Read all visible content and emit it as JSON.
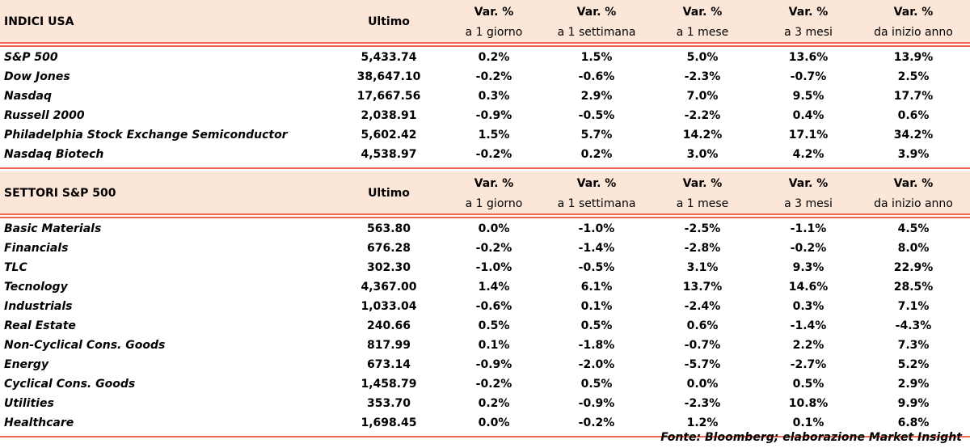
{
  "columns": {
    "ultimo": "Ultimo",
    "var_top": "Var. %",
    "sub": [
      "a 1 giorno",
      "a 1 settimana",
      "a 1 mese",
      "a 3 mesi",
      "da inizio anno"
    ]
  },
  "sections": [
    {
      "title": "INDICI USA",
      "rows": [
        {
          "name": "S&P 500",
          "last": "5,433.74",
          "vals": [
            "0.2%",
            "1.5%",
            "5.0%",
            "13.6%",
            "13.9%"
          ]
        },
        {
          "name": "Dow Jones",
          "last": "38,647.10",
          "vals": [
            "-0.2%",
            "-0.6%",
            "-2.3%",
            "-0.7%",
            "2.5%"
          ]
        },
        {
          "name": "Nasdaq",
          "last": "17,667.56",
          "vals": [
            "0.3%",
            "2.9%",
            "7.0%",
            "9.5%",
            "17.7%"
          ]
        },
        {
          "name": "Russell 2000",
          "last": "2,038.91",
          "vals": [
            "-0.9%",
            "-0.5%",
            "-2.2%",
            "0.4%",
            "0.6%"
          ]
        },
        {
          "name": "Philadelphia Stock Exchange Semiconductor",
          "last": "5,602.42",
          "vals": [
            "1.5%",
            "5.7%",
            "14.2%",
            "17.1%",
            "34.2%"
          ]
        },
        {
          "name": "Nasdaq Biotech",
          "last": "4,538.97",
          "vals": [
            "-0.2%",
            "0.2%",
            "3.0%",
            "4.2%",
            "3.9%"
          ]
        }
      ]
    },
    {
      "title": "SETTORI S&P 500",
      "rows": [
        {
          "name": "Basic Materials",
          "last": "563.80",
          "vals": [
            "0.0%",
            "-1.0%",
            "-2.5%",
            "-1.1%",
            "4.5%"
          ]
        },
        {
          "name": "Financials",
          "last": "676.28",
          "vals": [
            "-0.2%",
            "-1.4%",
            "-2.8%",
            "-0.2%",
            "8.0%"
          ]
        },
        {
          "name": "TLC",
          "last": "302.30",
          "vals": [
            "-1.0%",
            "-0.5%",
            "3.1%",
            "9.3%",
            "22.9%"
          ]
        },
        {
          "name": "Tecnology",
          "last": "4,367.00",
          "vals": [
            "1.4%",
            "6.1%",
            "13.7%",
            "14.6%",
            "28.5%"
          ]
        },
        {
          "name": "Industrials",
          "last": "1,033.04",
          "vals": [
            "-0.6%",
            "0.1%",
            "-2.4%",
            "0.3%",
            "7.1%"
          ]
        },
        {
          "name": "Real Estate",
          "last": "240.66",
          "vals": [
            "0.5%",
            "0.5%",
            "0.6%",
            "-1.4%",
            "-4.3%"
          ]
        },
        {
          "name": "Non-Cyclical Cons. Goods",
          "last": "817.99",
          "vals": [
            "0.1%",
            "-1.8%",
            "-0.7%",
            "2.2%",
            "7.3%"
          ]
        },
        {
          "name": "Energy",
          "last": "673.14",
          "vals": [
            "-0.9%",
            "-2.0%",
            "-5.7%",
            "-2.7%",
            "5.2%"
          ]
        },
        {
          "name": "Cyclical Cons. Goods",
          "last": "1,458.79",
          "vals": [
            "-0.2%",
            "0.5%",
            "0.0%",
            "0.5%",
            "2.9%"
          ]
        },
        {
          "name": "Utilities",
          "last": "353.70",
          "vals": [
            "0.2%",
            "-0.9%",
            "-2.3%",
            "10.8%",
            "9.9%"
          ]
        },
        {
          "name": "Healthcare",
          "last": "1,698.45",
          "vals": [
            "0.0%",
            "-0.2%",
            "1.2%",
            "0.1%",
            "6.8%"
          ]
        }
      ]
    }
  ],
  "footer": "Fonte: Bloomberg; elaborazione Market Insight",
  "colors": {
    "header_bg": "#fce6d8",
    "rule": "#f0654f"
  }
}
